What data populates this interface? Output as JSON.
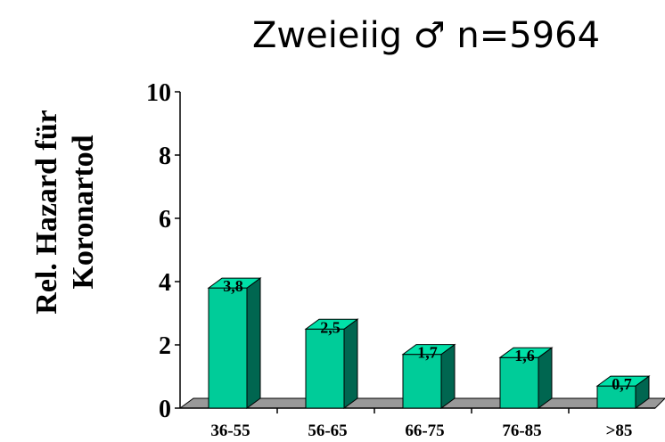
{
  "chart_data": {
    "type": "bar",
    "title": "Zweieiig ♂ n=5964",
    "ylabel_lines": [
      "Rel. Hazard für",
      "Koronartod"
    ],
    "xlabel": "",
    "categories": [
      "36-55",
      "56-65",
      "66-75",
      "76-85",
      ">85"
    ],
    "values": [
      3.8,
      2.5,
      1.7,
      1.6,
      0.7
    ],
    "data_labels": [
      "3,8",
      "2,5",
      "1,7",
      "1,6",
      "0,7"
    ],
    "ylim": [
      0,
      10
    ],
    "yticks": [
      0,
      2,
      4,
      6,
      8,
      10
    ],
    "grid": false,
    "legend": "none",
    "colors": {
      "bar_front": "#00cc99",
      "bar_side": "#006650",
      "bar_top": "#00e0a8",
      "floor": "#999999"
    }
  }
}
